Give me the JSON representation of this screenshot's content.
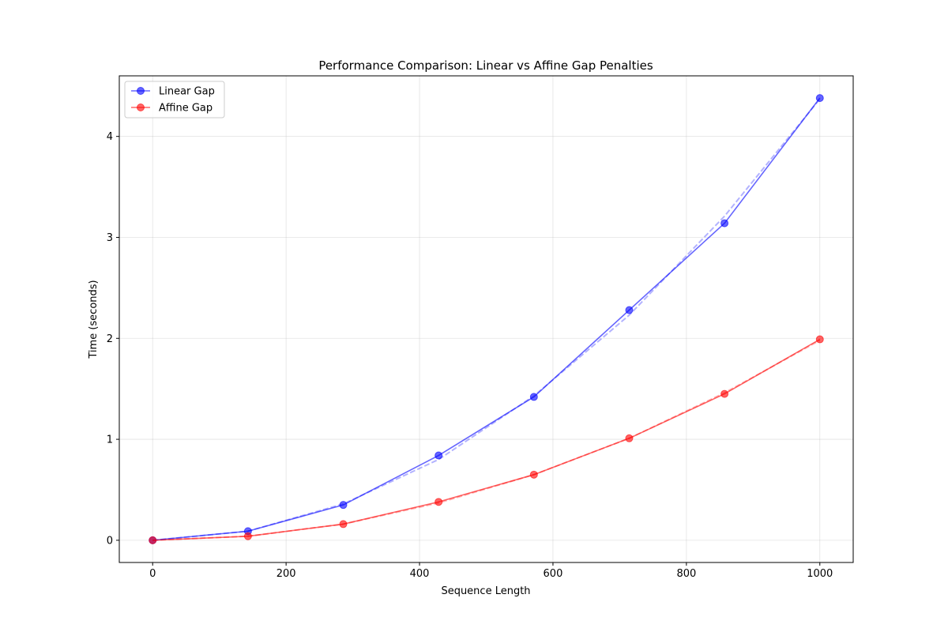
{
  "chart_data": {
    "type": "line",
    "title": "Performance Comparison: Linear vs Affine Gap Penalties",
    "xlabel": "Sequence Length",
    "ylabel": "Time (seconds)",
    "xlim": [
      -50,
      1050
    ],
    "ylim": [
      -0.22,
      4.6
    ],
    "xticks": [
      0,
      200,
      400,
      600,
      800,
      1000
    ],
    "yticks": [
      0,
      1,
      2,
      3,
      4
    ],
    "grid": true,
    "legend_position": "top-left",
    "x": [
      0,
      142.86,
      285.71,
      428.57,
      571.43,
      714.29,
      857.14,
      1000
    ],
    "series": [
      {
        "name": "Linear Gap",
        "color": "#0000ff",
        "values": [
          0.0,
          0.09,
          0.35,
          0.84,
          1.42,
          2.28,
          3.14,
          4.38
        ],
        "fit": [
          0.0,
          0.09,
          0.36,
          0.8,
          1.43,
          2.23,
          3.21,
          4.37
        ]
      },
      {
        "name": "Affine Gap",
        "color": "#ff0000",
        "values": [
          0.0,
          0.04,
          0.16,
          0.38,
          0.65,
          1.01,
          1.45,
          1.99
        ],
        "fit": [
          0.0,
          0.04,
          0.16,
          0.37,
          0.65,
          1.01,
          1.46,
          1.98
        ]
      }
    ]
  }
}
